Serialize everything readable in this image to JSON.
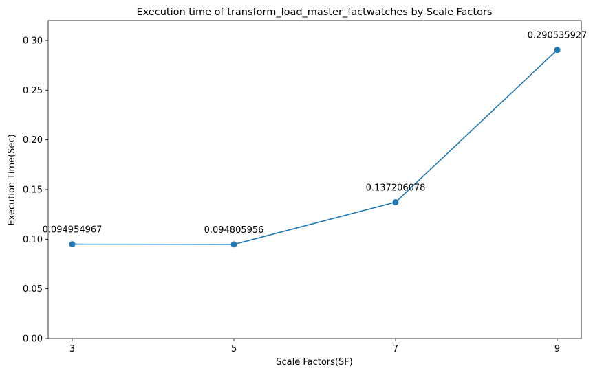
{
  "chart_data": {
    "type": "line",
    "title": "Execution time of transform_load_master_factwatches by Scale Factors",
    "xlabel": "Scale Factors(SF)",
    "ylabel": "Execution Time(Sec)",
    "x": [
      3,
      5,
      7,
      9
    ],
    "x_tick_labels": [
      "3",
      "5",
      "7",
      "9"
    ],
    "y_ticks": [
      0.0,
      0.05,
      0.1,
      0.15,
      0.2,
      0.25,
      0.3
    ],
    "y_tick_labels": [
      "0.00",
      "0.05",
      "0.10",
      "0.15",
      "0.20",
      "0.25",
      "0.30"
    ],
    "ylim": [
      0,
      0.32
    ],
    "series": [
      {
        "values": [
          0.094954967,
          0.094805956,
          0.137206078,
          0.290535927
        ],
        "data_labels": [
          "0.094954967",
          "0.094805956",
          "0.137206078",
          "0.290535927"
        ],
        "color": "#1f77b4",
        "marker": "circle"
      }
    ],
    "grid": false,
    "legend": "none"
  }
}
